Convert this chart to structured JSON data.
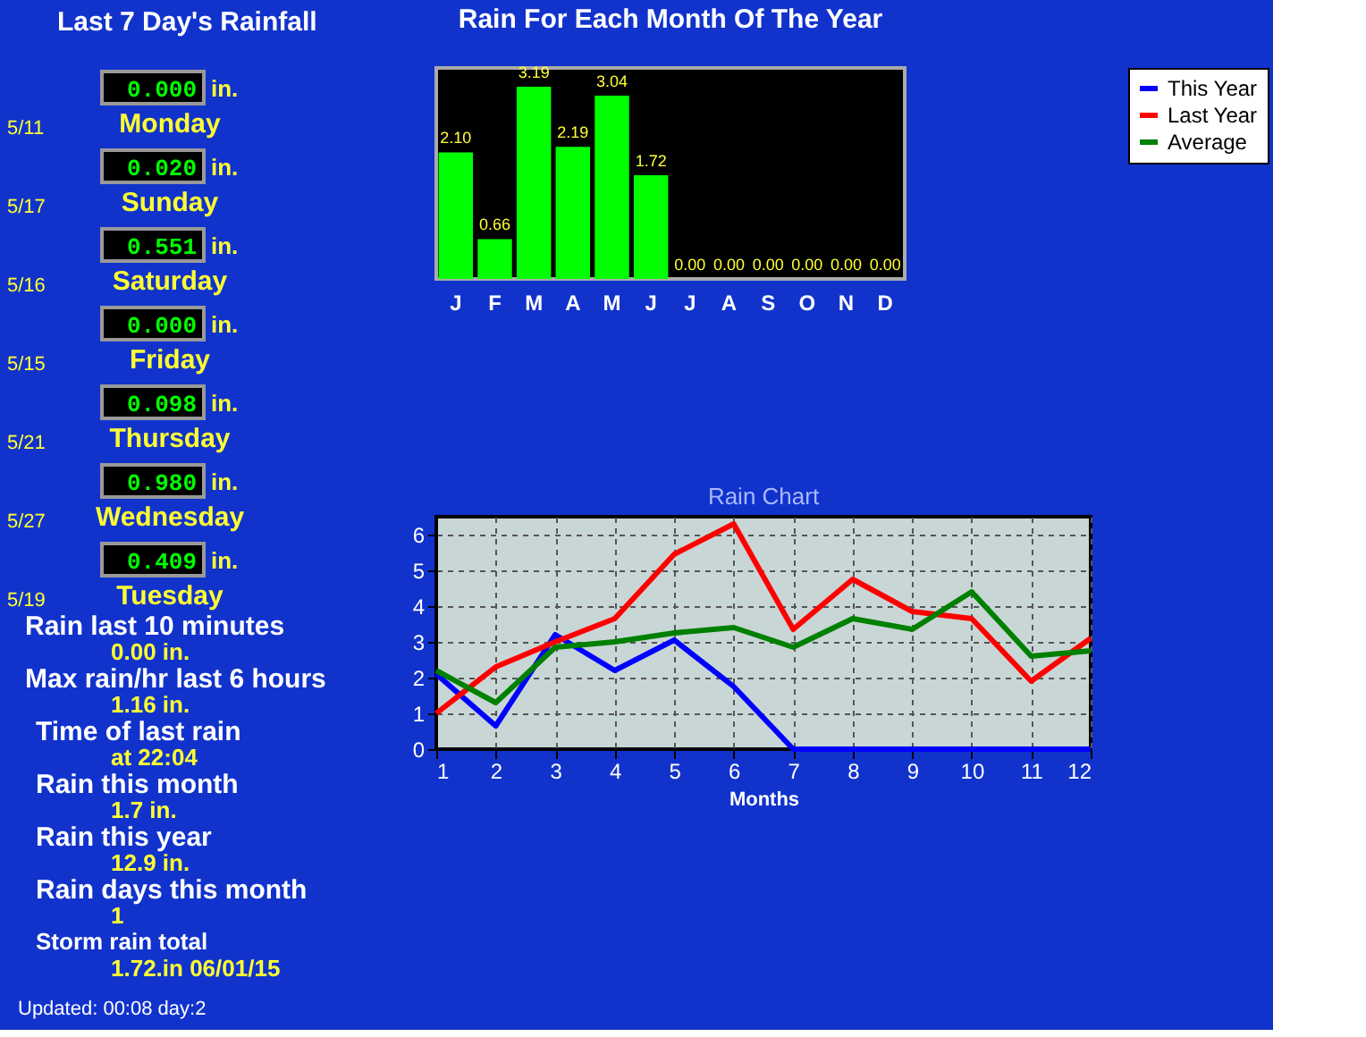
{
  "chart_data": [
    {
      "type": "other",
      "title": "Last 7 Day's Rainfall",
      "annotations": [
        "5/11",
        "0.000",
        "in.",
        "Monday",
        "5/17",
        "0.020",
        "in.",
        "Sunday",
        "5/16",
        "0.551",
        "in.",
        "Saturday",
        "5/15",
        "0.000",
        "in.",
        "Friday",
        "5/21",
        "0.098",
        "in.",
        "Thursday",
        "5/27",
        "0.980",
        "in.",
        "Wednesday",
        "5/19",
        "0.409",
        "in.",
        "Tuesday"
      ]
    },
    {
      "type": "other",
      "annotations": [
        "Rain last 10 minutes",
        "0.00 in.",
        "Max rain/hr last 6 hours",
        "1.16 in.",
        "Time of last rain",
        "at 22:04",
        "Rain this month",
        "1.7 in.",
        "Rain this year",
        "12.9 in.",
        "Rain days this month",
        "1",
        "Storm rain total",
        "1.72.in 06/01/15",
        "Updated: 00:08 day:2"
      ]
    },
    {
      "type": "bar",
      "title": "Rain For Each Month Of The Year",
      "categories": [
        "J",
        "F",
        "M",
        "A",
        "M",
        "J",
        "J",
        "A",
        "S",
        "O",
        "N",
        "D"
      ],
      "values": [
        2.1,
        0.66,
        3.19,
        2.19,
        3.04,
        1.72,
        0.0,
        0.0,
        0.0,
        0.0,
        0.0,
        0.0
      ],
      "value_labels": [
        "2.10",
        "0.66",
        "3.19",
        "2.19",
        "3.04",
        "1.72",
        "0.00",
        "0.00",
        "0.00",
        "0.00",
        "0.00",
        "0.00"
      ],
      "color": "#00ff00",
      "tick_labels": "x"
    },
    {
      "type": "line",
      "title": "Rain Chart",
      "xlabel": "Months",
      "x": [
        1,
        2,
        3,
        4,
        5,
        6,
        7,
        8,
        9,
        10,
        11,
        12
      ],
      "xlim": [
        1,
        12
      ],
      "xticks": [
        1,
        2,
        3,
        4,
        5,
        6,
        7,
        8,
        9,
        10,
        11,
        12
      ],
      "ylim": [
        0,
        6.5
      ],
      "yticks": [
        0,
        1,
        2,
        3,
        4,
        5,
        6
      ],
      "grid": true,
      "legend": "top right",
      "marker": "none",
      "line_style": "solid",
      "series": [
        {
          "name": "This Year",
          "color": "#0000ff",
          "values": [
            2.1,
            0.65,
            3.2,
            2.2,
            3.05,
            1.75,
            0,
            0,
            0,
            0,
            0,
            0
          ]
        },
        {
          "name": "Last Year",
          "color": "#ff0000",
          "values": [
            1.0,
            2.3,
            3.0,
            3.65,
            5.45,
            6.3,
            3.35,
            4.75,
            3.85,
            3.65,
            1.9,
            3.1
          ]
        },
        {
          "name": "Average",
          "color": "#008000",
          "values": [
            2.2,
            1.3,
            2.85,
            3.0,
            3.25,
            3.4,
            2.85,
            3.65,
            3.35,
            4.4,
            2.6,
            2.75
          ]
        }
      ]
    }
  ]
}
